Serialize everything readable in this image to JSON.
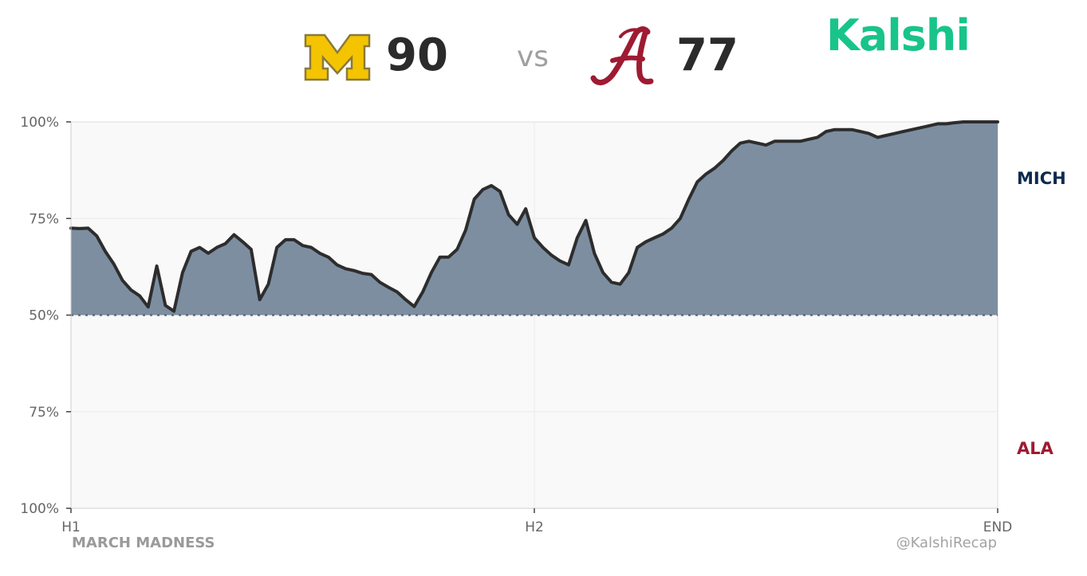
{
  "header": {
    "home": {
      "abbr": "MICH",
      "score": "90",
      "logo_icon": "michigan-block-m-icon",
      "logo_letter": "M"
    },
    "vs_text": "vs",
    "away": {
      "abbr": "ALA",
      "score": "77",
      "logo_icon": "alabama-script-a-icon",
      "logo_letter": "A"
    },
    "brand": "Kalshi"
  },
  "colors": {
    "michigan_maize": "#f5c400",
    "michigan_blue": "#0d2a4f",
    "alabama_crimson": "#9e1b32",
    "area_fill": "#6f8297",
    "line": "#2d2d2d",
    "brand_green": "#18c48a",
    "plot_bg": "#f9f9f9"
  },
  "footer": {
    "left": "MARCH MADNESS",
    "right": "@KalshiRecap"
  },
  "chart_data": {
    "type": "area",
    "y_tick_labels": [
      "100%",
      "75%",
      "50%",
      "75%",
      "100%"
    ],
    "x_tick_labels": [
      "H1",
      "H2",
      "END"
    ],
    "team_labels": {
      "top": "MICH",
      "bottom": "ALA"
    },
    "ylim": [
      0,
      100
    ],
    "baseline": 50,
    "grid": true,
    "series": [
      {
        "values": [
          72.5,
          72.4,
          72.5,
          70.5,
          66.5,
          63.2,
          59.0,
          56.5,
          55.0,
          52.1,
          62.7,
          52.5,
          51.0,
          61.0,
          66.5,
          67.5,
          66.0,
          67.5,
          68.5,
          70.8,
          69.0,
          67.0,
          54.0,
          58.0,
          67.5,
          69.5,
          69.5,
          68.0,
          67.5,
          66.0,
          65.0,
          63.0,
          62.0,
          61.5,
          60.8,
          60.5,
          58.5,
          57.2,
          56.0,
          54.0,
          52.2,
          56.0,
          61.0,
          65.0,
          65.0,
          67.0,
          72.0,
          80.0,
          82.5,
          83.5,
          82.0,
          76.0,
          73.5,
          77.5,
          70.0,
          67.5,
          65.5,
          64.0,
          63.0,
          70.0,
          74.5,
          66.0,
          61.0,
          58.5,
          58.0,
          61.0,
          67.5,
          69.0,
          70.0,
          71.0,
          72.5,
          75.0,
          80.0,
          84.5,
          86.5,
          88.0,
          90.0,
          92.5,
          94.5,
          95.0,
          94.5,
          94.0,
          95.0,
          95.0,
          95.0,
          95.0,
          95.5,
          96.0,
          97.5,
          98.0,
          98.0,
          98.0,
          97.5,
          97.0,
          96.0,
          96.5,
          97.0,
          97.5,
          98.0,
          98.5,
          99.0,
          99.5,
          99.5,
          99.8,
          100.0,
          100.0,
          100.0,
          100.0,
          100.0
        ]
      }
    ]
  }
}
